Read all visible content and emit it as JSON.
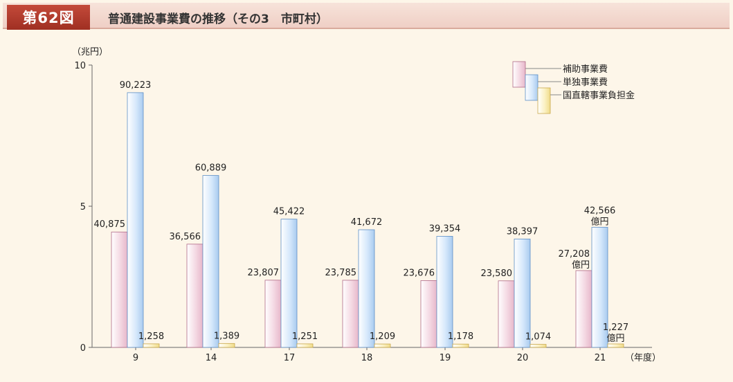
{
  "figure": {
    "number": "第62図",
    "title": "普通建設事業費の推移（その3　市町村）"
  },
  "chart_data": {
    "type": "bar",
    "ylabel": "（兆円）",
    "xlabel": "（年度）",
    "ylim": [
      0,
      10
    ],
    "yticks": [
      "0",
      "5",
      "10"
    ],
    "categories": [
      "9",
      "14",
      "17",
      "18",
      "19",
      "20",
      "21"
    ],
    "unit_label": "億円",
    "legend_position": "top-right",
    "series": [
      {
        "name": "補助事業費",
        "color": "#f2cedd",
        "values": [
          4.0875,
          3.6566,
          2.3807,
          2.3785,
          2.3676,
          2.358,
          2.7208
        ],
        "labels": [
          "40,875",
          "36,566",
          "23,807",
          "23,785",
          "23,676",
          "23,580",
          "27,208"
        ]
      },
      {
        "name": "単独事業費",
        "color": "#cfe3fa",
        "values": [
          9.0223,
          6.0889,
          4.5422,
          4.1672,
          3.9354,
          3.8397,
          4.2566
        ],
        "labels": [
          "90,223",
          "60,889",
          "45,422",
          "41,672",
          "39,354",
          "38,397",
          "42,566"
        ]
      },
      {
        "name": "国直轄事業負担金",
        "color": "#fbf0b8",
        "values": [
          0.1258,
          0.1389,
          0.1251,
          0.1209,
          0.1178,
          0.1074,
          0.1227
        ],
        "labels": [
          "1,258",
          "1,389",
          "1,251",
          "1,209",
          "1,178",
          "1,074",
          "1,227"
        ]
      }
    ]
  }
}
